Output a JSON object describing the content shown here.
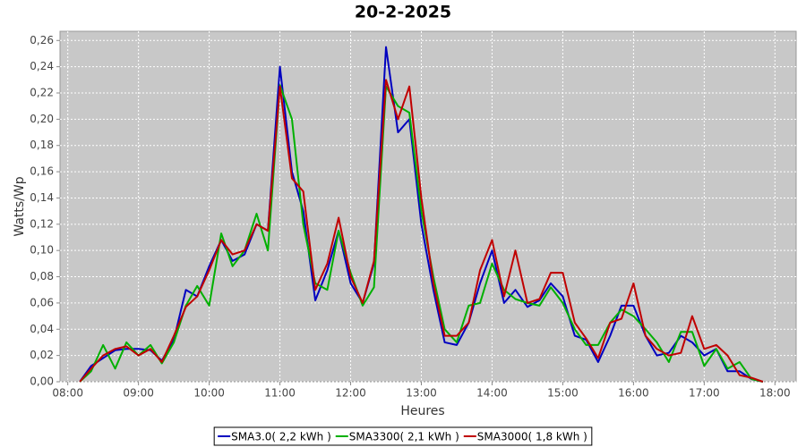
{
  "chart_data": {
    "type": "line",
    "title": "20-2-2025",
    "x_label": "Heures",
    "y_label": "Watts/Wp",
    "x": [
      8.17,
      8.33,
      8.5,
      8.67,
      8.83,
      9,
      9.17,
      9.33,
      9.5,
      9.67,
      9.83,
      10,
      10.17,
      10.33,
      10.5,
      10.67,
      10.83,
      11,
      11.17,
      11.33,
      11.5,
      11.67,
      11.83,
      12,
      12.17,
      12.33,
      12.5,
      12.67,
      12.83,
      13,
      13.17,
      13.33,
      13.5,
      13.67,
      13.83,
      14,
      14.17,
      14.33,
      14.5,
      14.67,
      14.83,
      15,
      15.17,
      15.33,
      15.5,
      15.67,
      15.83,
      16,
      16.17,
      16.33,
      16.5,
      16.67,
      16.83,
      17,
      17.17,
      17.33,
      17.5,
      17.67,
      17.83
    ],
    "series": [
      {
        "name": "SMA3.0( 2,2 kWh )",
        "color": "#0000c0",
        "values": [
          0,
          0.012,
          0.018,
          0.024,
          0.025,
          0.025,
          0.024,
          0.016,
          0.032,
          0.07,
          0.065,
          0.088,
          0.108,
          0.092,
          0.097,
          0.12,
          0.115,
          0.24,
          0.16,
          0.13,
          0.062,
          0.085,
          0.115,
          0.075,
          0.06,
          0.09,
          0.255,
          0.19,
          0.2,
          0.12,
          0.07,
          0.03,
          0.028,
          0.045,
          0.075,
          0.1,
          0.06,
          0.07,
          0.057,
          0.062,
          0.075,
          0.065,
          0.035,
          0.032,
          0.015,
          0.035,
          0.058,
          0.058,
          0.035,
          0.02,
          0.022,
          0.035,
          0.03,
          0.02,
          0.025,
          0.008,
          0.008,
          0.002,
          0
        ]
      },
      {
        "name": "SMA3300( 2,1 kWh )",
        "color": "#00b000",
        "values": [
          0,
          0.008,
          0.028,
          0.01,
          0.03,
          0.02,
          0.028,
          0.014,
          0.03,
          0.058,
          0.073,
          0.058,
          0.113,
          0.088,
          0.1,
          0.128,
          0.1,
          0.226,
          0.2,
          0.12,
          0.075,
          0.07,
          0.115,
          0.083,
          0.058,
          0.072,
          0.225,
          0.21,
          0.205,
          0.13,
          0.08,
          0.04,
          0.03,
          0.058,
          0.06,
          0.09,
          0.07,
          0.063,
          0.06,
          0.058,
          0.072,
          0.06,
          0.04,
          0.028,
          0.028,
          0.045,
          0.055,
          0.05,
          0.04,
          0.03,
          0.015,
          0.038,
          0.038,
          0.012,
          0.025,
          0.01,
          0.015,
          0.002,
          0
        ]
      },
      {
        "name": "SMA3000( 1,8 kWh )",
        "color": "#c00000",
        "values": [
          0,
          0.01,
          0.02,
          0.025,
          0.027,
          0.02,
          0.025,
          0.015,
          0.035,
          0.057,
          0.065,
          0.085,
          0.108,
          0.097,
          0.1,
          0.12,
          0.115,
          0.225,
          0.155,
          0.145,
          0.07,
          0.09,
          0.125,
          0.08,
          0.06,
          0.092,
          0.23,
          0.2,
          0.225,
          0.14,
          0.075,
          0.035,
          0.035,
          0.045,
          0.085,
          0.108,
          0.065,
          0.1,
          0.06,
          0.063,
          0.083,
          0.083,
          0.045,
          0.033,
          0.018,
          0.045,
          0.048,
          0.075,
          0.035,
          0.025,
          0.02,
          0.022,
          0.05,
          0.025,
          0.028,
          0.02,
          0.005,
          0.003,
          0
        ]
      }
    ],
    "xlim": [
      7.89,
      18.3
    ],
    "xticks": [
      {
        "value": 8,
        "label": "08:00"
      },
      {
        "value": 9,
        "label": "09:00"
      },
      {
        "value": 10,
        "label": "10:00"
      },
      {
        "value": 11,
        "label": "11:00"
      },
      {
        "value": 12,
        "label": "12:00"
      },
      {
        "value": 13,
        "label": "13:00"
      },
      {
        "value": 14,
        "label": "14:00"
      },
      {
        "value": 15,
        "label": "15:00"
      },
      {
        "value": 16,
        "label": "16:00"
      },
      {
        "value": 17,
        "label": "17:00"
      },
      {
        "value": 18,
        "label": "18:00"
      }
    ],
    "ylim": [
      0,
      0.267
    ],
    "yticks": [
      {
        "value": 0,
        "label": "0,00"
      },
      {
        "value": 0.02,
        "label": "0,02"
      },
      {
        "value": 0.04,
        "label": "0,04"
      },
      {
        "value": 0.06,
        "label": "0,06"
      },
      {
        "value": 0.08,
        "label": "0,08"
      },
      {
        "value": 0.1,
        "label": "0,10"
      },
      {
        "value": 0.12,
        "label": "0,12"
      },
      {
        "value": 0.14,
        "label": "0,14"
      },
      {
        "value": 0.16,
        "label": "0,16"
      },
      {
        "value": 0.18,
        "label": "0,18"
      },
      {
        "value": 0.2,
        "label": "0,20"
      },
      {
        "value": 0.22,
        "label": "0,22"
      },
      {
        "value": 0.24,
        "label": "0,24"
      },
      {
        "value": 0.26,
        "label": "0,26"
      }
    ],
    "grid": true,
    "legend": "bottom"
  }
}
